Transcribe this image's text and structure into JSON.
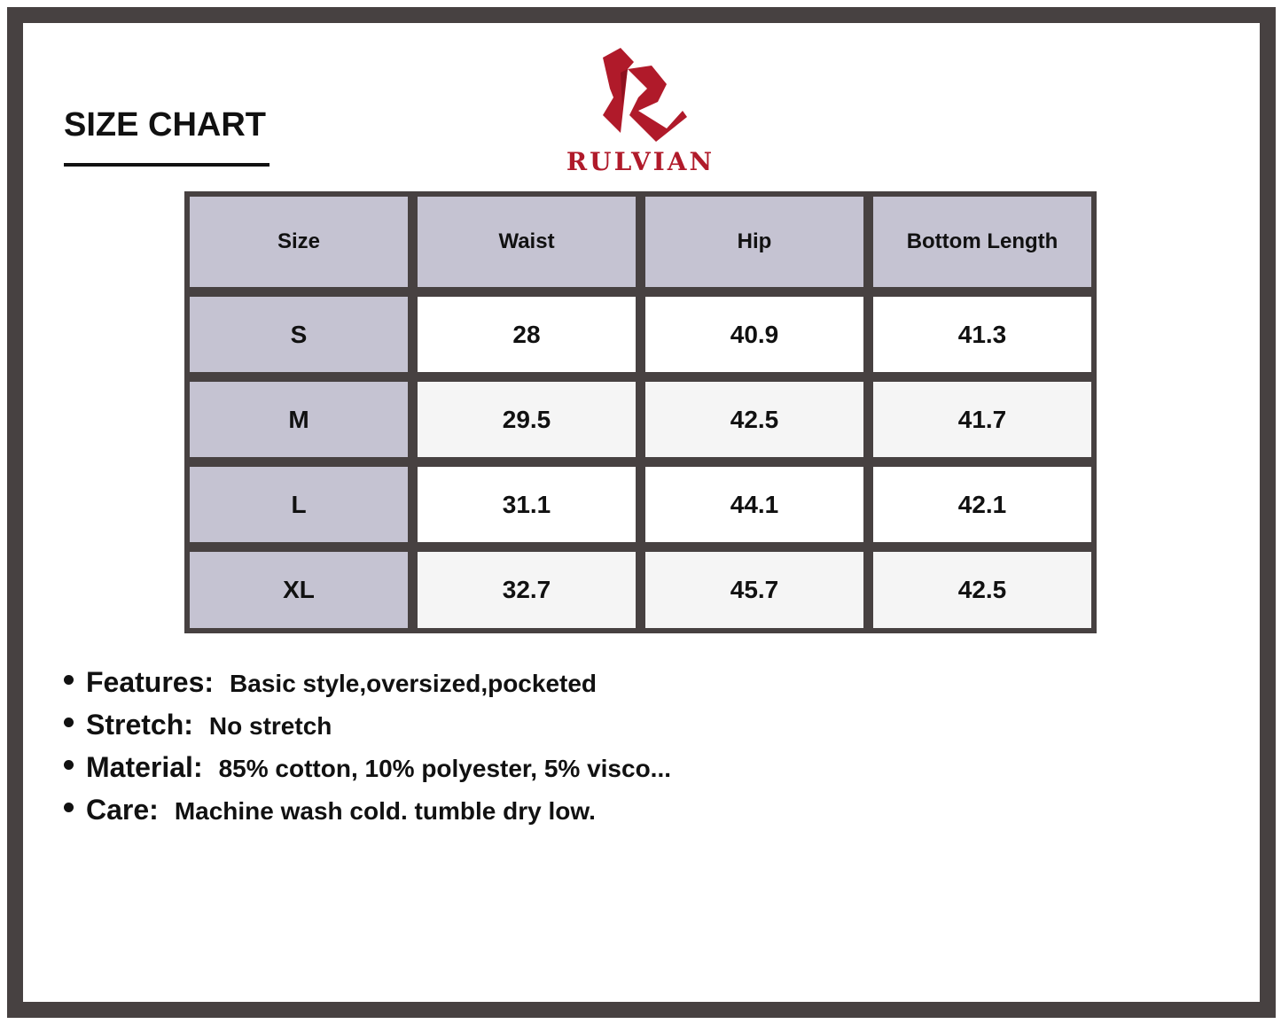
{
  "title": "SIZE CHART",
  "brand": {
    "name": "RULVIAN",
    "color": "#b01a2a"
  },
  "table": {
    "headers": [
      "Size",
      "Waist",
      "Hip",
      "Bottom Length"
    ],
    "rows": [
      [
        "S",
        "28",
        "40.9",
        "41.3"
      ],
      [
        "M",
        "29.5",
        "42.5",
        "41.7"
      ],
      [
        "L",
        "31.1",
        "44.1",
        "42.1"
      ],
      [
        "XL",
        "32.7",
        "45.7",
        "42.5"
      ]
    ]
  },
  "details": [
    {
      "label": "Features:",
      "value": "Basic style,oversized,pocketed"
    },
    {
      "label": "Stretch:",
      "value": "No stretch"
    },
    {
      "label": "Material:",
      "value": "85% cotton, 10% polyester, 5% visco..."
    },
    {
      "label": "Care:",
      "value": "Machine wash cold. tumble dry low."
    }
  ]
}
